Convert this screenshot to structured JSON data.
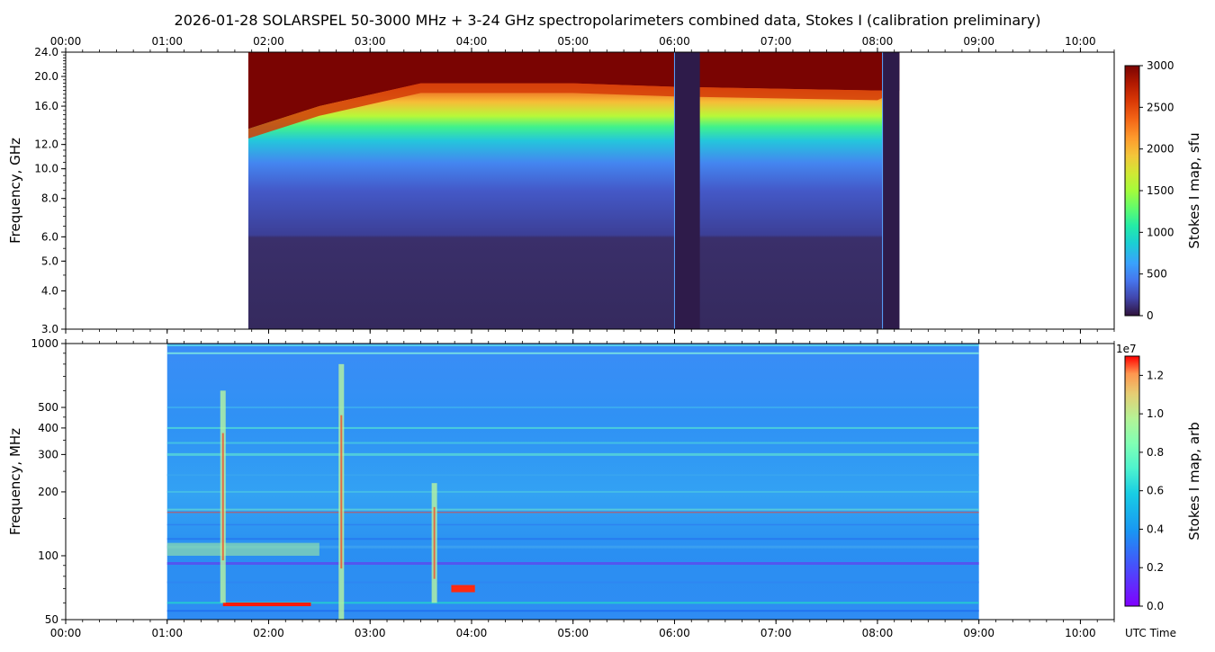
{
  "title": "2026-01-28  SOLARSPEL  50-3000 MHz  +  3-24 GHz  spectropolarimeters combined data,  Stokes I  (calibration preliminary)",
  "chart_data": [
    {
      "type": "heatmap",
      "panel": "top",
      "ylabel": "Frequency, GHz",
      "yscale": "log",
      "ylim": [
        3.0,
        24.0
      ],
      "ytick_labels": [
        "3.0",
        "4.0",
        "5.0",
        "6.0",
        "8.0",
        "10.0",
        "12.0",
        "16.0",
        "20.0",
        "24.0"
      ],
      "xlabel": "",
      "xlim": [
        "00:00",
        "10:20"
      ],
      "xtick_labels_top": [
        "00:00",
        "01:00",
        "02:00",
        "03:00",
        "04:00",
        "05:00",
        "06:00",
        "07:00",
        "08:00",
        "09:00",
        "10:00"
      ],
      "data_coverage": {
        "start": "01:48",
        "end": "08:13"
      },
      "gaps": [
        {
          "start": "06:00",
          "end": "06:15"
        },
        {
          "start": "08:03",
          "end": "08:13"
        }
      ],
      "colorbar": {
        "label": "Stokes I map, sfu",
        "range": [
          0,
          3000
        ],
        "tick_labels": [
          "0",
          "500",
          "1000",
          "1500",
          "2000",
          "2500",
          "3000"
        ],
        "colormap": "turbo"
      },
      "saturation_frequency_ghz": [
        {
          "time": "01:48",
          "ghz": 13.5
        },
        {
          "time": "02:30",
          "ghz": 16.0
        },
        {
          "time": "03:30",
          "ghz": 19.0
        },
        {
          "time": "05:00",
          "ghz": 19.0
        },
        {
          "time": "06:00",
          "ghz": 18.5
        },
        {
          "time": "08:00",
          "ghz": 18.0
        }
      ]
    },
    {
      "type": "heatmap",
      "panel": "bottom",
      "ylabel": "Frequency, MHz",
      "yscale": "log",
      "ylim": [
        50,
        1000
      ],
      "ytick_labels": [
        "50",
        "100",
        "200",
        "300",
        "400",
        "500",
        "1000"
      ],
      "xlabel": "UTC Time",
      "xlim": [
        "00:00",
        "10:20"
      ],
      "xtick_labels_bottom": [
        "00:00",
        "01:00",
        "02:00",
        "03:00",
        "04:00",
        "05:00",
        "06:00",
        "07:00",
        "08:00",
        "09:00",
        "10:00"
      ],
      "data_coverage": {
        "start": "01:00",
        "end": "09:00"
      },
      "colorbar": {
        "label": "Stokes I map, arb",
        "range": [
          0.0,
          1.3
        ],
        "tick_labels": [
          "0.0",
          "0.2",
          "0.4",
          "0.6",
          "0.8",
          "1.0",
          "1.2"
        ],
        "offset_label": "1e7",
        "colormap": "rainbow"
      },
      "bursts": [
        {
          "time": "01:33",
          "mhz_range": [
            60,
            600
          ],
          "description": "broadband burst"
        },
        {
          "time": "02:43",
          "mhz_range": [
            50,
            800
          ],
          "description": "broadband burst"
        },
        {
          "time": "03:38",
          "mhz_range": [
            60,
            220
          ],
          "description": "burst"
        }
      ]
    }
  ]
}
